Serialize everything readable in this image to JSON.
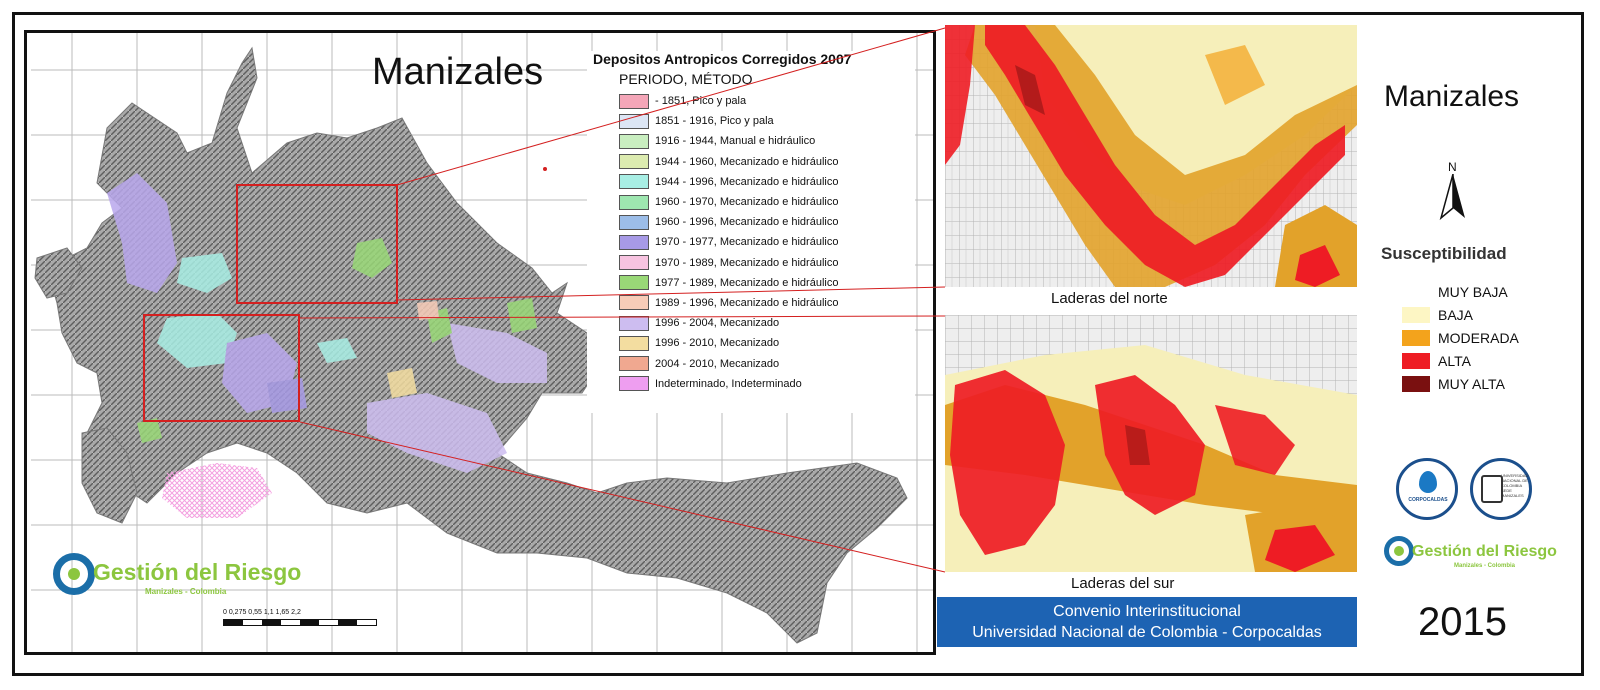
{
  "left_map": {
    "title": "Manizales",
    "legend": {
      "title": "Depositos Antropicos Corregidos 2007",
      "subtitle": "PERIODO, MÉTODO",
      "items": [
        {
          "label": "- 1851, Pico y pala",
          "color": "#f4a6b8"
        },
        {
          "label": "1851 - 1916, Pico y pala",
          "color": "#dce6f5"
        },
        {
          "label": "1916 - 1944, Manual e hidráulico",
          "color": "#c9eec0"
        },
        {
          "label": "1944 - 1960, Mecanizado e hidráulico",
          "color": "#dcebb0"
        },
        {
          "label": "1944 - 1996, Mecanizado e hidráulico",
          "color": "#a8eee4"
        },
        {
          "label": "1960 - 1970, Mecanizado e hidráulico",
          "color": "#9ee6b0"
        },
        {
          "label": "1960 - 1996, Mecanizado e hidráulico",
          "color": "#9cbde8"
        },
        {
          "label": "1970 - 1977, Mecanizado e hidráulico",
          "color": "#a79ae6"
        },
        {
          "label": "1970 - 1989, Mecanizado e hidráulico",
          "color": "#f7c3e0"
        },
        {
          "label": "1977 - 1989, Mecanizado e hidráulico",
          "color": "#99d877"
        },
        {
          "label": "1989 - 1996, Mecanizado e hidráulico",
          "color": "#f7ccb8"
        },
        {
          "label": "1996 - 2004, Mecanizado",
          "color": "#cdbdf0"
        },
        {
          "label": "1996 - 2010, Mecanizado",
          "color": "#f3dda0"
        },
        {
          "label": "2004 - 2010, Mecanizado",
          "color": "#f0a890"
        },
        {
          "label": "Indeterminado, Indeterminado",
          "color": "#ee9ef0"
        }
      ]
    },
    "scale_ticks": "0  0,275 0,55      1,1      1,65     2,2",
    "logo": {
      "name": "Gestión del Riesgo",
      "city": "Manizales - Colombia"
    }
  },
  "panels": {
    "north_label": "Laderas del norte",
    "south_label": "Laderas del sur"
  },
  "banner": {
    "line1": "Convenio Interinstitucional",
    "line2": "Universidad Nacional de Colombia - Corpocaldas"
  },
  "right": {
    "title": "Manizales",
    "north": "N",
    "susceptibility": {
      "title": "Susceptibilidad",
      "items": [
        {
          "label": "MUY BAJA",
          "color": "#ffffff"
        },
        {
          "label": "BAJA",
          "color": "#fdf6c4"
        },
        {
          "label": "MODERADA",
          "color": "#f3a31c"
        },
        {
          "label": "ALTA",
          "color": "#ee1c24"
        },
        {
          "label": "MUY ALTA",
          "color": "#7a1010"
        }
      ]
    },
    "logo_corpocaldas": "CORPOCALDAS",
    "logo_un": "UNIVERSIDAD NACIONAL DE COLOMBIA SEDE MANIZALES",
    "logo": {
      "name": "Gestión del Riesgo",
      "city": "Manizales - Colombia"
    },
    "year": "2015"
  }
}
